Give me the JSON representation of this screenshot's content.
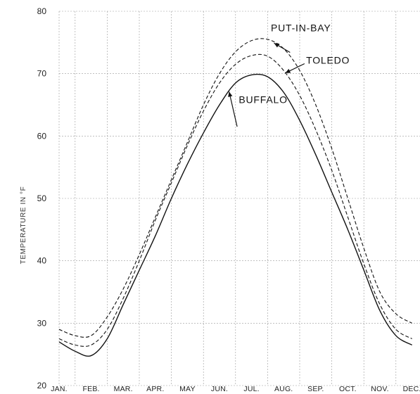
{
  "chart_data": {
    "type": "line",
    "title": "",
    "xlabel": "",
    "ylabel": "TEMPERATURE IN °F",
    "categories": [
      "JAN.",
      "FEB.",
      "MAR.",
      "APR.",
      "MAY",
      "JUN.",
      "JUL.",
      "AUG.",
      "SEP.",
      "OCT.",
      "NOV.",
      "DEC."
    ],
    "ylim": [
      20,
      80
    ],
    "yticks": [
      20,
      30,
      40,
      50,
      60,
      70,
      80
    ],
    "grid": true,
    "series": [
      {
        "name": "PUT-IN-BAY",
        "style": "dashed",
        "x": [
          0.0,
          0.5,
          1.0,
          1.5,
          2.0,
          2.5,
          3.0,
          3.5,
          4.0,
          4.5,
          5.0,
          5.5,
          6.0,
          6.5,
          7.0,
          7.5,
          8.0,
          8.5,
          9.0,
          9.5,
          10.0,
          10.5,
          11.0
        ],
        "values": [
          29.0,
          28.0,
          28.0,
          31.0,
          35.5,
          41.0,
          47.0,
          53.0,
          59.0,
          65.0,
          70.0,
          73.5,
          75.3,
          75.5,
          74.0,
          70.5,
          65.0,
          58.0,
          50.0,
          42.0,
          35.0,
          31.5,
          30.0
        ]
      },
      {
        "name": "TOLEDO",
        "style": "dashed",
        "x": [
          0.0,
          0.5,
          1.0,
          1.5,
          2.0,
          2.5,
          3.0,
          3.5,
          4.0,
          4.5,
          5.0,
          5.5,
          6.0,
          6.5,
          7.0,
          7.5,
          8.0,
          8.5,
          9.0,
          9.5,
          10.0,
          10.5,
          11.0
        ],
        "values": [
          27.5,
          26.5,
          26.5,
          29.0,
          34.0,
          40.0,
          46.5,
          52.5,
          58.5,
          64.0,
          68.5,
          71.5,
          72.9,
          72.8,
          70.5,
          66.5,
          61.0,
          54.5,
          47.0,
          39.5,
          33.0,
          29.0,
          27.5
        ]
      },
      {
        "name": "BUFFALO",
        "style": "solid",
        "x": [
          0.0,
          0.5,
          1.0,
          1.5,
          2.0,
          2.5,
          3.0,
          3.5,
          4.0,
          4.5,
          5.0,
          5.5,
          6.0,
          6.5,
          7.0,
          7.5,
          8.0,
          8.5,
          9.0,
          9.5,
          10.0,
          10.5,
          11.0
        ],
        "values": [
          27.0,
          25.5,
          24.8,
          27.5,
          33.0,
          38.5,
          44.0,
          50.0,
          55.5,
          60.5,
          65.0,
          68.5,
          69.8,
          69.5,
          67.0,
          62.5,
          57.0,
          51.0,
          45.0,
          38.5,
          32.0,
          28.0,
          26.5
        ]
      }
    ],
    "annotations": [
      {
        "text": "PUT-IN-BAY",
        "series": "PUT-IN-BAY"
      },
      {
        "text": "TOLEDO",
        "series": "TOLEDO"
      },
      {
        "text": "BUFFALO",
        "series": "BUFFALO"
      }
    ]
  }
}
